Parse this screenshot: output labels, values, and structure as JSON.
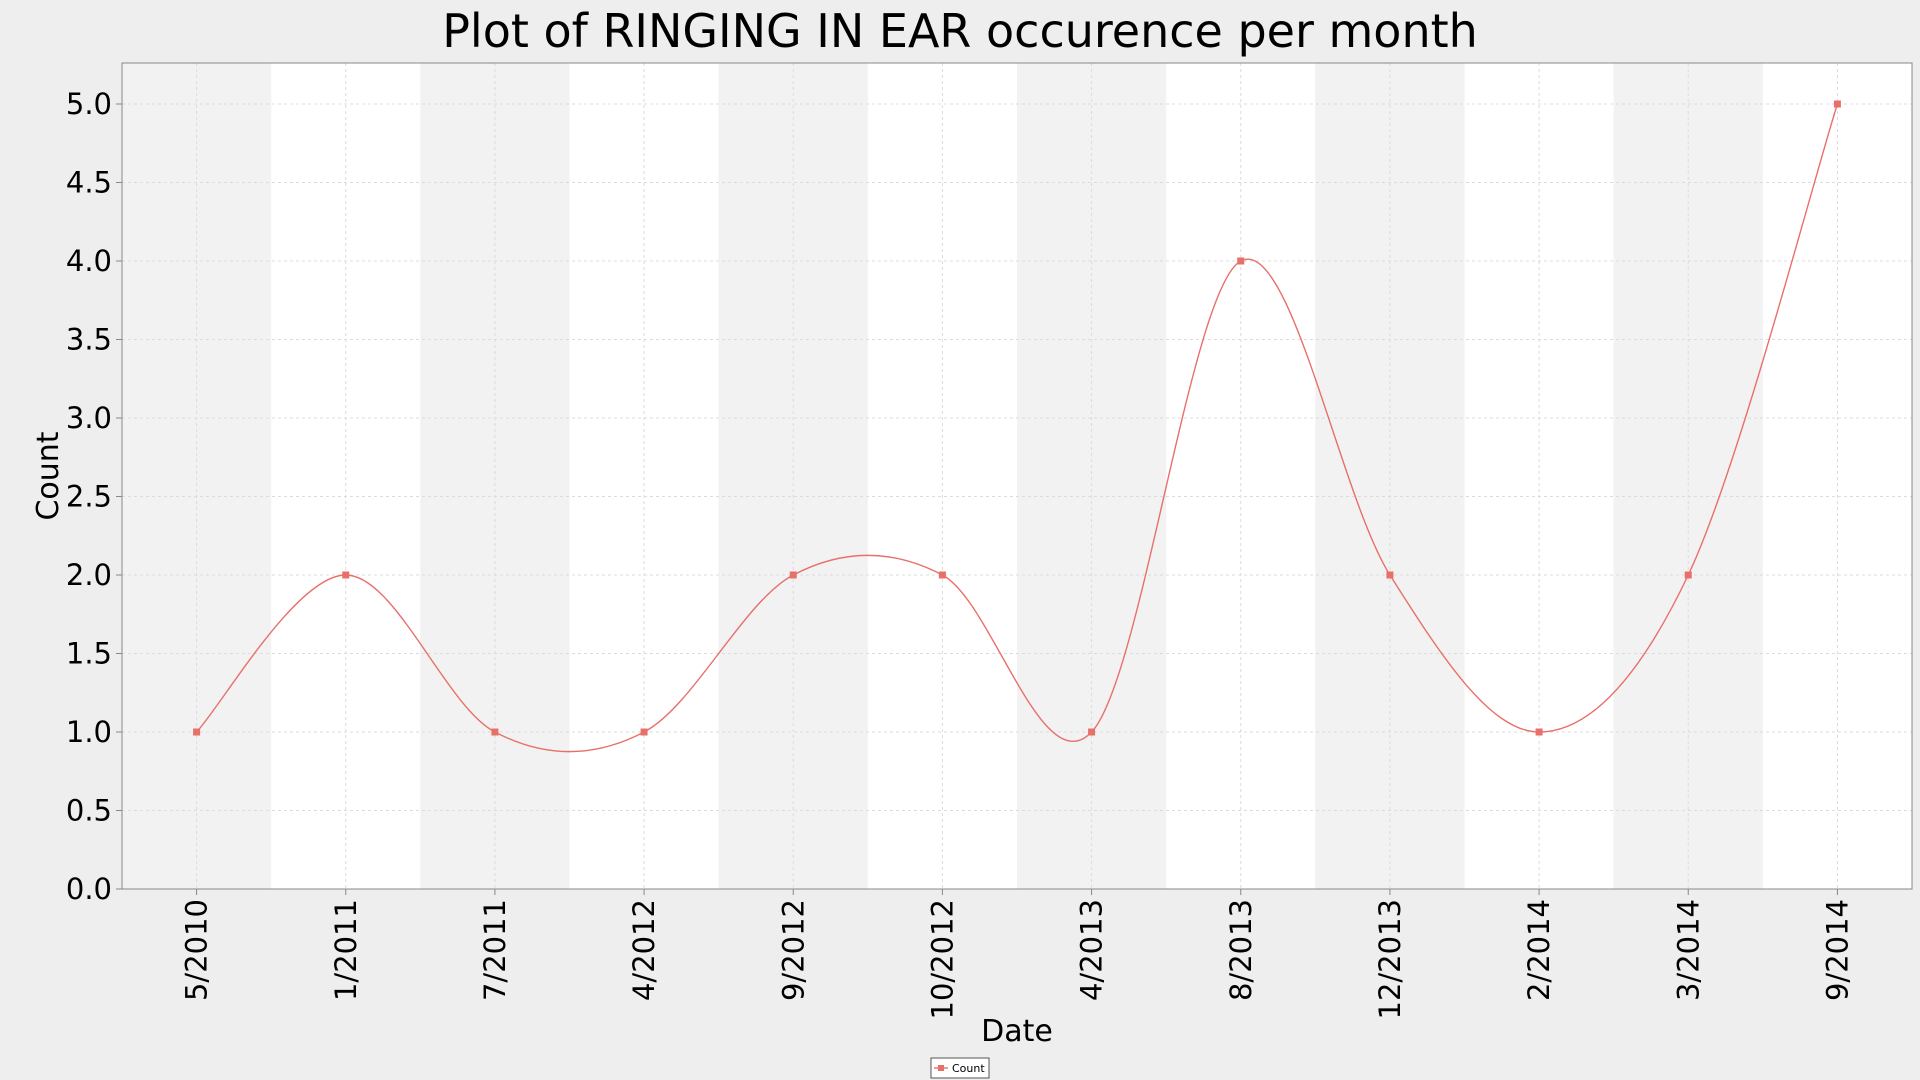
{
  "chart_data": {
    "type": "line",
    "title": "Plot of RINGING IN EAR occurence per month",
    "xlabel": "Date",
    "ylabel": "Count",
    "categories": [
      "5/2010",
      "1/2011",
      "7/2011",
      "4/2012",
      "9/2012",
      "10/2012",
      "4/2013",
      "8/2013",
      "12/2013",
      "2/2014",
      "3/2014",
      "9/2014"
    ],
    "series": [
      {
        "name": "Count",
        "values": [
          1,
          2,
          1,
          1,
          2,
          2,
          1,
          4,
          2,
          1,
          2,
          5
        ],
        "color": "#e8706a"
      }
    ],
    "ylim": [
      0,
      5
    ],
    "yticks": [
      "0.0",
      "0.5",
      "1.0",
      "1.5",
      "2.0",
      "2.5",
      "3.0",
      "3.5",
      "4.0",
      "4.5",
      "5.0"
    ],
    "grid": true,
    "legend_position": "bottom-center",
    "line_style": "smooth-spline"
  },
  "colors": {
    "background": "#eeeeee",
    "plot_background": "#ffffff",
    "band_shade": "#f2f2f2",
    "grid": "#dcdcdc",
    "axis": "#888888",
    "series": "#e8706a"
  }
}
